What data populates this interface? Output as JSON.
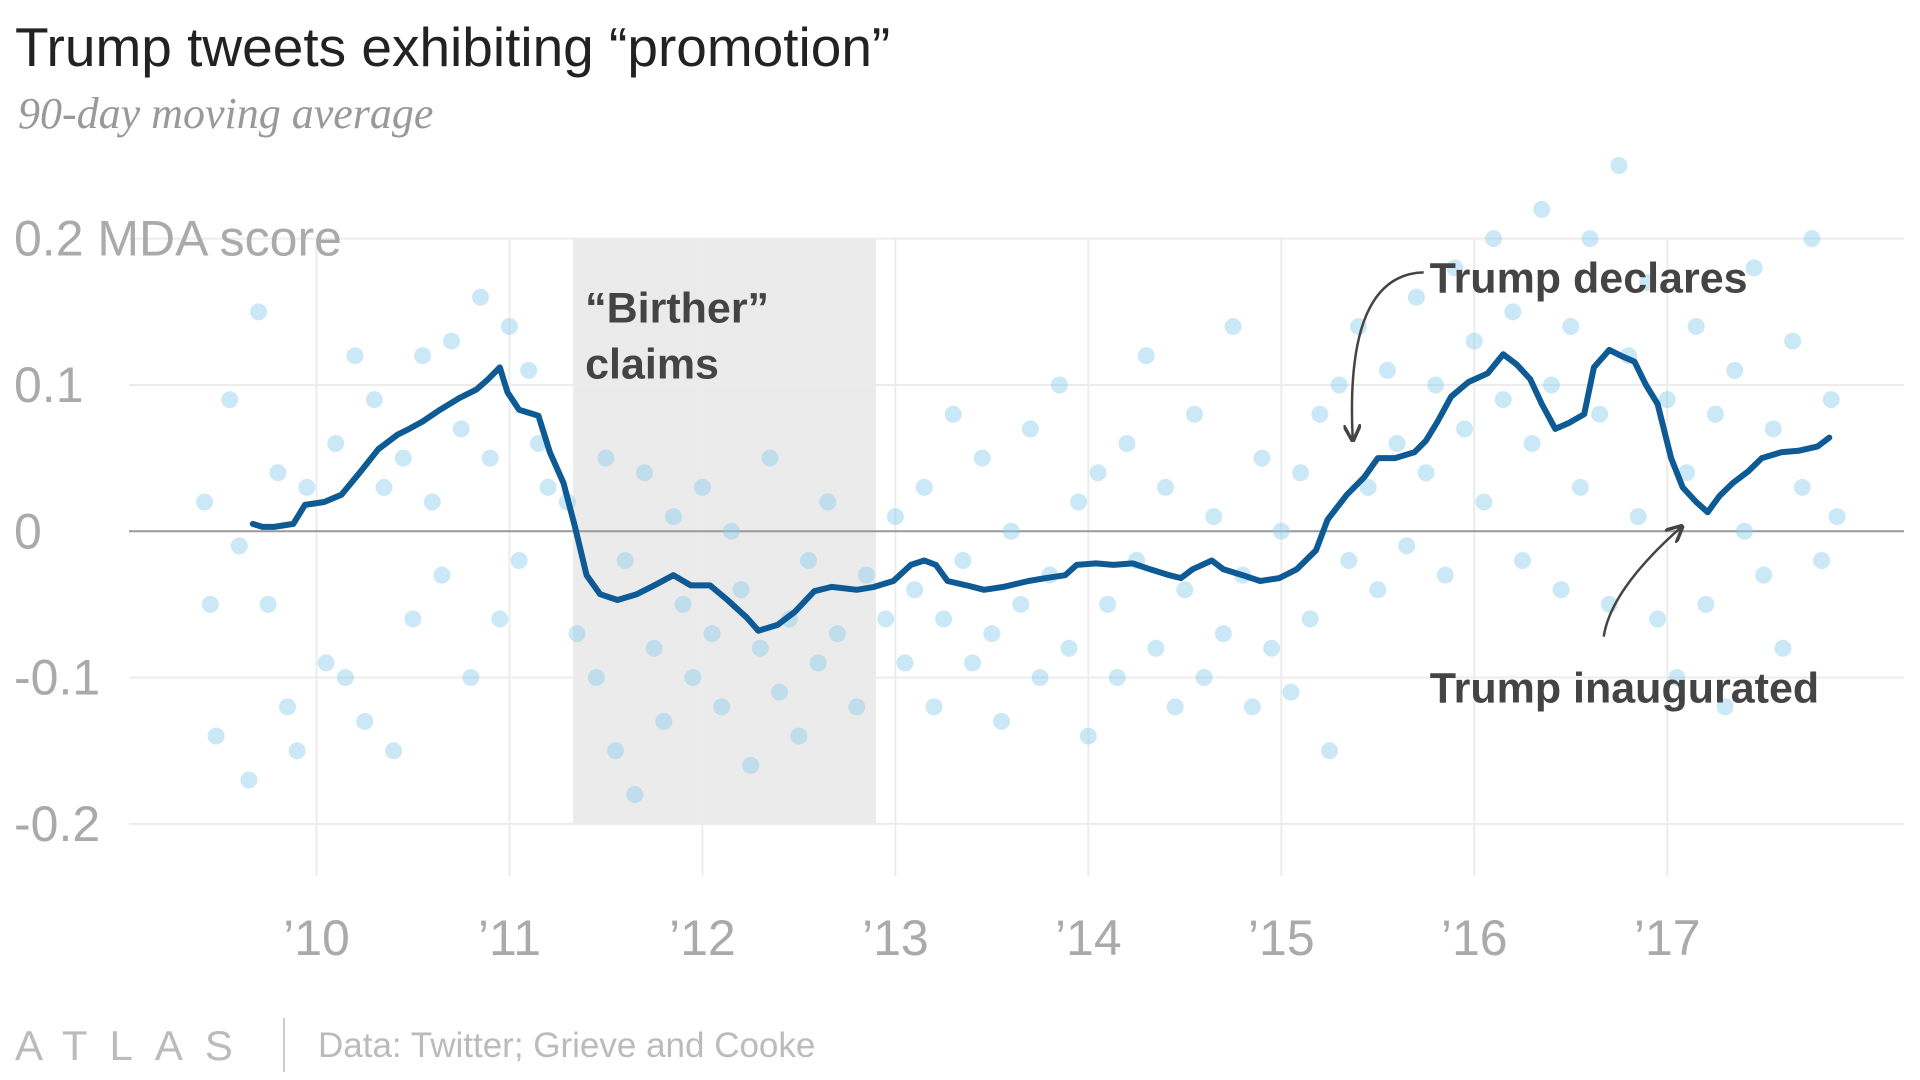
{
  "chart_data": {
    "type": "line",
    "title": "Trump tweets exhibiting “promotion”",
    "subtitle": "90-day moving average",
    "source": "Data: Twitter; Grieve and Cooke",
    "logo": "ATLAS",
    "xlim": [
      2008.36,
      2018.31
    ],
    "ylim": [
      -0.25,
      0.36
    ],
    "xticks": [
      {
        "value": 2010,
        "label": "’10"
      },
      {
        "value": 2011,
        "label": "’11"
      },
      {
        "value": 2012,
        "label": "’12"
      },
      {
        "value": 2013,
        "label": "’13"
      },
      {
        "value": 2014,
        "label": "’14"
      },
      {
        "value": 2015,
        "label": "’15"
      },
      {
        "value": 2016,
        "label": "’16"
      },
      {
        "value": 2017,
        "label": "’17"
      }
    ],
    "yticks": [
      -0.2,
      -0.1,
      0,
      0.1,
      {
        "value": 0.2,
        "label": "0.2 MDA score"
      }
    ],
    "grid": true,
    "shaded_regions": [
      {
        "lines": [
          "“Birther”",
          "claims"
        ],
        "x": [
          2011.33,
          2012.9
        ],
        "y": [
          -0.2,
          0.2
        ]
      }
    ],
    "annotations": [
      {
        "text": "Trump declares",
        "x": 2015.37,
        "y": 0.058
      },
      {
        "text": "Trump inaugurated",
        "x": 2017.07,
        "y": 0.008
      }
    ],
    "series": [
      {
        "type": "scatter",
        "color": "#8ccbee",
        "x": [
          2009.42,
          2009.45,
          2009.48,
          2009.55,
          2009.6,
          2009.65,
          2009.7,
          2009.75,
          2009.8,
          2009.85,
          2009.9,
          2009.95,
          2010.05,
          2010.1,
          2010.15,
          2010.2,
          2010.25,
          2010.3,
          2010.35,
          2010.4,
          2010.45,
          2010.5,
          2010.55,
          2010.6,
          2010.65,
          2010.7,
          2010.75,
          2010.8,
          2010.85,
          2010.9,
          2010.95,
          2011.0,
          2011.05,
          2011.1,
          2011.15,
          2011.2,
          2011.3,
          2011.35,
          2011.45,
          2011.5,
          2011.55,
          2011.6,
          2011.65,
          2011.7,
          2011.75,
          2011.8,
          2011.85,
          2011.9,
          2011.95,
          2012.0,
          2012.05,
          2012.1,
          2012.15,
          2012.2,
          2012.25,
          2012.3,
          2012.35,
          2012.4,
          2012.45,
          2012.5,
          2012.55,
          2012.6,
          2012.65,
          2012.7,
          2012.8,
          2012.85,
          2012.95,
          2013.0,
          2013.05,
          2013.1,
          2013.15,
          2013.2,
          2013.25,
          2013.3,
          2013.35,
          2013.4,
          2013.45,
          2013.5,
          2013.55,
          2013.6,
          2013.65,
          2013.7,
          2013.75,
          2013.8,
          2013.85,
          2013.9,
          2013.95,
          2014.0,
          2014.05,
          2014.1,
          2014.15,
          2014.2,
          2014.25,
          2014.3,
          2014.35,
          2014.4,
          2014.45,
          2014.5,
          2014.55,
          2014.6,
          2014.65,
          2014.7,
          2014.75,
          2014.8,
          2014.85,
          2014.9,
          2014.95,
          2015.0,
          2015.05,
          2015.1,
          2015.15,
          2015.2,
          2015.25,
          2015.3,
          2015.35,
          2015.4,
          2015.45,
          2015.5,
          2015.55,
          2015.6,
          2015.65,
          2015.7,
          2015.75,
          2015.8,
          2015.85,
          2015.9,
          2015.95,
          2016.0,
          2016.05,
          2016.1,
          2016.15,
          2016.2,
          2016.25,
          2016.3,
          2016.35,
          2016.4,
          2016.45,
          2016.5,
          2016.55,
          2016.6,
          2016.65,
          2016.7,
          2016.75,
          2016.8,
          2016.85,
          2016.9,
          2016.95,
          2017.0,
          2017.05,
          2017.1,
          2017.15,
          2017.2,
          2017.25,
          2017.3,
          2017.35,
          2017.4,
          2017.45,
          2017.5,
          2017.55,
          2017.6,
          2017.65,
          2017.7,
          2017.75,
          2017.8,
          2017.85,
          2017.88
        ],
        "values": [
          0.02,
          -0.05,
          -0.14,
          0.09,
          -0.01,
          -0.17,
          0.15,
          -0.05,
          0.04,
          -0.12,
          -0.15,
          0.03,
          -0.09,
          0.06,
          -0.1,
          0.12,
          -0.13,
          0.09,
          0.03,
          -0.15,
          0.05,
          -0.06,
          0.12,
          0.02,
          -0.03,
          0.13,
          0.07,
          -0.1,
          0.16,
          0.05,
          -0.06,
          0.14,
          -0.02,
          0.11,
          0.06,
          0.03,
          0.02,
          -0.07,
          -0.1,
          0.05,
          -0.15,
          -0.02,
          -0.18,
          0.04,
          -0.08,
          -0.13,
          0.01,
          -0.05,
          -0.1,
          0.03,
          -0.07,
          -0.12,
          0.0,
          -0.04,
          -0.16,
          -0.08,
          0.05,
          -0.11,
          -0.06,
          -0.14,
          -0.02,
          -0.09,
          0.02,
          -0.07,
          -0.12,
          -0.03,
          -0.06,
          0.01,
          -0.09,
          -0.04,
          0.03,
          -0.12,
          -0.06,
          0.08,
          -0.02,
          -0.09,
          0.05,
          -0.07,
          -0.13,
          0.0,
          -0.05,
          0.07,
          -0.1,
          -0.03,
          0.1,
          -0.08,
          0.02,
          -0.14,
          0.04,
          -0.05,
          -0.1,
          0.06,
          -0.02,
          0.12,
          -0.08,
          0.03,
          -0.12,
          -0.04,
          0.08,
          -0.1,
          0.01,
          -0.07,
          0.14,
          -0.03,
          -0.12,
          0.05,
          -0.08,
          0.0,
          -0.11,
          0.04,
          -0.06,
          0.08,
          -0.15,
          0.1,
          -0.02,
          0.14,
          0.03,
          -0.04,
          0.11,
          0.06,
          -0.01,
          0.16,
          0.04,
          0.1,
          -0.03,
          0.18,
          0.07,
          0.13,
          0.02,
          0.2,
          0.09,
          0.15,
          -0.02,
          0.06,
          0.22,
          0.1,
          -0.04,
          0.14,
          0.03,
          0.2,
          0.08,
          -0.05,
          0.25,
          0.12,
          0.01,
          0.17,
          -0.06,
          0.09,
          -0.1,
          0.04,
          0.14,
          -0.05,
          0.08,
          -0.12,
          0.11,
          0.0,
          0.18,
          -0.03,
          0.07,
          -0.08,
          0.13,
          0.03,
          0.2,
          -0.02,
          0.09,
          0.01
        ]
      },
      {
        "type": "line",
        "color": "#0d5a94",
        "x": [
          2009.67,
          2009.72,
          2009.78,
          2009.88,
          2009.94,
          2010.04,
          2010.13,
          2010.23,
          2010.32,
          2010.42,
          2010.48,
          2010.55,
          2010.64,
          2010.74,
          2010.83,
          2010.89,
          2010.95,
          2010.99,
          2011.05,
          2011.15,
          2011.21,
          2011.28,
          2011.34,
          2011.4,
          2011.47,
          2011.56,
          2011.66,
          2011.75,
          2011.85,
          2011.94,
          2012.04,
          2012.13,
          2012.23,
          2012.29,
          2012.39,
          2012.48,
          2012.58,
          2012.67,
          2012.8,
          2012.89,
          2012.99,
          2013.08,
          2013.15,
          2013.21,
          2013.27,
          2013.37,
          2013.46,
          2013.56,
          2013.69,
          2013.78,
          2013.88,
          2013.94,
          2014.04,
          2014.13,
          2014.23,
          2014.32,
          2014.42,
          2014.48,
          2014.54,
          2014.64,
          2014.7,
          2014.8,
          2014.89,
          2014.99,
          2015.08,
          2015.18,
          2015.24,
          2015.34,
          2015.43,
          2015.5,
          2015.59,
          2015.69,
          2015.75,
          2015.81,
          2015.88,
          2015.97,
          2016.07,
          2016.15,
          2016.22,
          2016.29,
          2016.35,
          2016.42,
          2016.49,
          2016.57,
          2016.62,
          2016.7,
          2016.76,
          2016.83,
          2016.89,
          2016.95,
          2017.02,
          2017.08,
          2017.15,
          2017.21,
          2017.27,
          2017.34,
          2017.42,
          2017.49,
          2017.59,
          2017.68,
          2017.78,
          2017.84
        ],
        "values": [
          0.005,
          0.003,
          0.003,
          0.005,
          0.018,
          0.02,
          0.025,
          0.041,
          0.056,
          0.066,
          0.07,
          0.075,
          0.083,
          0.091,
          0.097,
          0.104,
          0.112,
          0.095,
          0.083,
          0.079,
          0.054,
          0.033,
          0.003,
          -0.03,
          -0.043,
          -0.047,
          -0.043,
          -0.037,
          -0.03,
          -0.037,
          -0.037,
          -0.047,
          -0.059,
          -0.068,
          -0.064,
          -0.055,
          -0.041,
          -0.038,
          -0.04,
          -0.038,
          -0.034,
          -0.023,
          -0.02,
          -0.023,
          -0.034,
          -0.037,
          -0.04,
          -0.038,
          -0.034,
          -0.032,
          -0.03,
          -0.023,
          -0.022,
          -0.023,
          -0.022,
          -0.026,
          -0.03,
          -0.032,
          -0.026,
          -0.02,
          -0.026,
          -0.03,
          -0.034,
          -0.032,
          -0.026,
          -0.013,
          0.008,
          0.025,
          0.037,
          0.05,
          0.05,
          0.054,
          0.062,
          0.075,
          0.092,
          0.102,
          0.108,
          0.121,
          0.114,
          0.104,
          0.087,
          0.07,
          0.074,
          0.08,
          0.112,
          0.124,
          0.12,
          0.116,
          0.1,
          0.087,
          0.05,
          0.03,
          0.02,
          0.013,
          0.024,
          0.033,
          0.041,
          0.05,
          0.054,
          0.055,
          0.058,
          0.064
        ]
      }
    ]
  }
}
